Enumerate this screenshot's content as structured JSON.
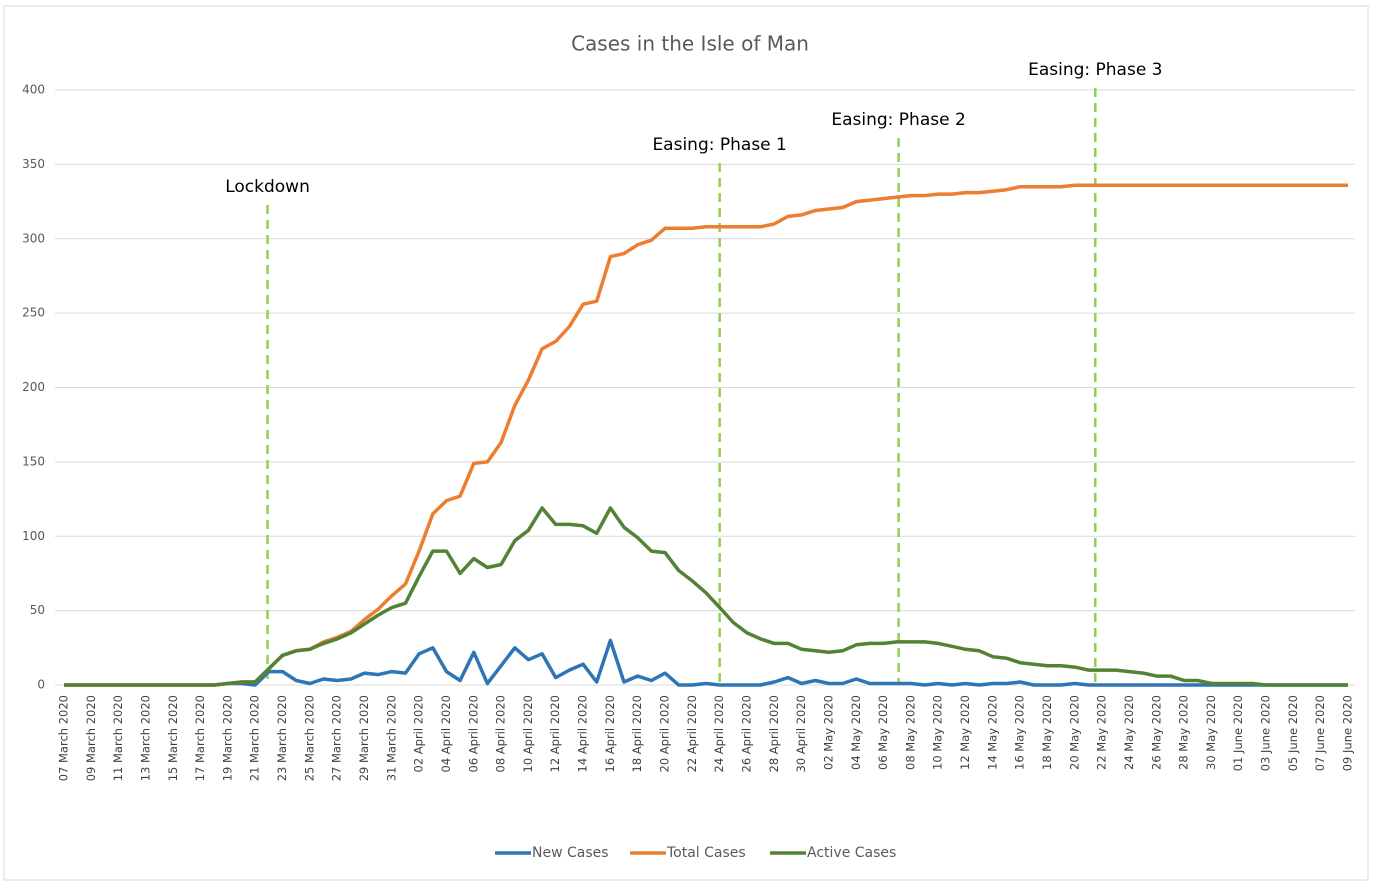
{
  "chart_data": {
    "type": "line",
    "title": "Cases in the Isle of Man",
    "categories": [
      "07 March 2020",
      null,
      "09 March 2020",
      null,
      "11 March 2020",
      null,
      "13 March 2020",
      null,
      "15 March 2020",
      null,
      "17 March 2020",
      null,
      "19 March 2020",
      null,
      "21 March 2020",
      null,
      "23 March 2020",
      null,
      "25 March 2020",
      null,
      "27 March 2020",
      null,
      "29 March 2020",
      null,
      "31 March 2020",
      null,
      "02 April 2020",
      null,
      "04 April 2020",
      null,
      "06 April 2020",
      null,
      "08 April 2020",
      null,
      "10 April 2020",
      null,
      "12 April 2020",
      null,
      "14 April 2020",
      null,
      "16 April 2020",
      null,
      "18 April 2020",
      null,
      "20 April 2020",
      null,
      "22 April 2020",
      null,
      "24 April 2020",
      null,
      "26 April 2020",
      null,
      "28 April 2020",
      null,
      "30 April 2020",
      null,
      "02 May 2020",
      null,
      "04 May 2020",
      null,
      "06 May 2020",
      null,
      "08 May 2020",
      null,
      "10 May 2020",
      null,
      "12 May 2020",
      null,
      "14 May 2020",
      null,
      "16 May 2020",
      null,
      "18 May 2020",
      null,
      "20 May 2020",
      null,
      "22 May 2020",
      null,
      "24 May 2020",
      null,
      "26 May 2020",
      null,
      "28 May 2020",
      null,
      "30 May 2020",
      null,
      "01 June 2020",
      null,
      "03 June 2020",
      null,
      "05 June 2020",
      null,
      "07 June 2020",
      null,
      "09 June 2020"
    ],
    "series": [
      {
        "name": "New Cases",
        "color": "#2e75b6",
        "values": [
          0,
          0,
          0,
          0,
          0,
          0,
          0,
          0,
          0,
          0,
          0,
          0,
          1,
          1,
          0,
          9,
          9,
          3,
          1,
          4,
          3,
          4,
          8,
          7,
          9,
          8,
          21,
          25,
          9,
          3,
          22,
          1,
          13,
          25,
          17,
          21,
          5,
          10,
          14,
          2,
          30,
          2,
          6,
          3,
          8,
          0,
          0,
          1,
          0,
          0,
          0,
          0,
          2,
          5,
          1,
          3,
          1,
          1,
          4,
          1,
          1,
          1,
          1,
          0,
          1,
          0,
          1,
          0,
          1,
          1,
          2,
          0,
          0,
          0,
          1,
          0,
          0,
          0,
          0,
          0,
          0,
          0,
          0,
          0,
          0,
          0,
          0,
          0,
          0,
          0,
          0,
          0,
          0,
          0,
          0
        ]
      },
      {
        "name": "Total Cases",
        "color": "#ed7d31",
        "values": [
          0,
          0,
          0,
          0,
          0,
          0,
          0,
          0,
          0,
          0,
          0,
          0,
          1,
          2,
          2,
          11,
          20,
          23,
          24,
          29,
          32,
          36,
          44,
          51,
          60,
          68,
          90,
          115,
          124,
          127,
          149,
          150,
          163,
          188,
          205,
          226,
          231,
          241,
          256,
          258,
          288,
          290,
          296,
          299,
          307,
          307,
          307,
          308,
          308,
          308,
          308,
          308,
          310,
          315,
          316,
          319,
          320,
          321,
          325,
          326,
          327,
          328,
          329,
          329,
          330,
          330,
          331,
          331,
          332,
          333,
          335,
          335,
          335,
          335,
          336,
          336,
          336,
          336,
          336,
          336,
          336,
          336,
          336,
          336,
          336,
          336,
          336,
          336,
          336,
          336,
          336,
          336,
          336,
          336,
          336
        ]
      },
      {
        "name": "Active Cases",
        "color": "#548235",
        "values": [
          0,
          0,
          0,
          0,
          0,
          0,
          0,
          0,
          0,
          0,
          0,
          0,
          1,
          2,
          2,
          11,
          20,
          23,
          24,
          28,
          31,
          35,
          41,
          47,
          52,
          55,
          73,
          90,
          90,
          75,
          85,
          79,
          81,
          97,
          104,
          119,
          108,
          108,
          107,
          102,
          119,
          106,
          99,
          90,
          89,
          77,
          70,
          62,
          52,
          42,
          35,
          31,
          28,
          28,
          24,
          23,
          22,
          23,
          27,
          28,
          28,
          29,
          29,
          29,
          28,
          26,
          24,
          23,
          19,
          18,
          15,
          14,
          13,
          13,
          12,
          10,
          10,
          10,
          9,
          8,
          6,
          6,
          3,
          3,
          1,
          1,
          1,
          1,
          0,
          0,
          0,
          0,
          0,
          0,
          0
        ]
      }
    ],
    "ylim": [
      0,
      400
    ],
    "yticks": [
      0,
      50,
      100,
      150,
      200,
      250,
      300,
      350,
      400
    ],
    "grid": true,
    "legend": "bottom",
    "annotations": [
      {
        "text": "Lockdown",
        "x": 14.9,
        "color": "#92d050"
      },
      {
        "text": "Easing: Phase 1",
        "x": 48,
        "color": "#92d050"
      },
      {
        "text": "Easing: Phase 2",
        "x": 61.1,
        "color": "#92d050"
      },
      {
        "text": "Easing: Phase 3",
        "x": 75.5,
        "color": "#92d050"
      }
    ]
  }
}
